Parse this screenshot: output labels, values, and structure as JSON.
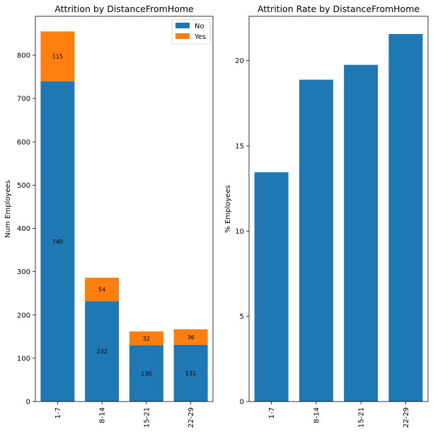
{
  "chart_data": [
    {
      "type": "bar",
      "stacked": true,
      "title": "Attrition by DistanceFromHome",
      "xlabel": "",
      "ylabel": "Num Employees",
      "categories": [
        "1-7",
        "8-14",
        "15-21",
        "22-29"
      ],
      "series": [
        {
          "name": "No",
          "color": "#1f77b4",
          "values": [
            740,
            232,
            130,
            131
          ]
        },
        {
          "name": "Yes",
          "color": "#ff7f0e",
          "values": [
            115,
            54,
            32,
            36
          ]
        }
      ],
      "ylim": [
        0,
        890
      ],
      "yticks": [
        0,
        100,
        200,
        300,
        400,
        500,
        600,
        700,
        800
      ],
      "legend": "top-right",
      "grid": false,
      "data_labels": true
    },
    {
      "type": "bar",
      "title": "Attrition Rate by DistanceFromHome",
      "xlabel": "",
      "ylabel": "% Employees",
      "categories": [
        "1-7",
        "8-14",
        "15-21",
        "22-29"
      ],
      "series": [
        {
          "color": "#1f77b4",
          "values": [
            13.45,
            18.88,
            19.75,
            21.56
          ]
        }
      ],
      "ylim": [
        0,
        22.6
      ],
      "yticks": [
        0,
        5,
        10,
        15,
        20
      ],
      "grid": false
    }
  ]
}
